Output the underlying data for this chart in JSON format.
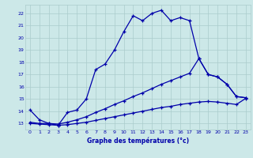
{
  "xlabel": "Graphe des températures (°c)",
  "background_color": "#cce8e8",
  "grid_color": "#aacccc",
  "line_color": "#0000aa",
  "xlim": [
    -0.5,
    23.5
  ],
  "ylim": [
    12.5,
    22.7
  ],
  "yticks": [
    13,
    14,
    15,
    16,
    17,
    18,
    19,
    20,
    21,
    22
  ],
  "xticks": [
    0,
    1,
    2,
    3,
    4,
    5,
    6,
    7,
    8,
    9,
    10,
    11,
    12,
    13,
    14,
    15,
    16,
    17,
    18,
    19,
    20,
    21,
    22,
    23
  ],
  "line1_x": [
    0,
    1,
    2,
    3,
    4,
    5,
    6,
    7,
    8,
    9,
    10,
    11,
    12,
    13,
    14,
    15,
    16,
    17,
    18,
    19,
    20,
    21,
    22,
    23
  ],
  "line1_y": [
    14.1,
    13.3,
    13.0,
    12.85,
    13.9,
    14.1,
    15.0,
    17.4,
    17.85,
    19.0,
    20.5,
    21.8,
    21.4,
    22.0,
    22.25,
    21.4,
    21.65,
    21.4,
    18.3,
    17.0,
    16.8,
    16.2,
    15.2,
    15.1
  ],
  "line2_x": [
    0,
    1,
    2,
    3,
    4,
    5,
    6,
    7,
    8,
    9,
    10,
    11,
    12,
    13,
    14,
    15,
    16,
    17,
    18,
    19,
    20,
    21,
    22,
    23
  ],
  "line2_y": [
    13.1,
    13.0,
    13.0,
    12.95,
    13.1,
    13.3,
    13.55,
    13.9,
    14.2,
    14.55,
    14.85,
    15.2,
    15.5,
    15.85,
    16.2,
    16.5,
    16.8,
    17.1,
    18.3,
    17.0,
    16.8,
    16.2,
    15.2,
    15.1
  ],
  "line3_x": [
    0,
    1,
    2,
    3,
    4,
    5,
    6,
    7,
    8,
    9,
    10,
    11,
    12,
    13,
    14,
    15,
    16,
    17,
    18,
    19,
    20,
    21,
    22,
    23
  ],
  "line3_y": [
    13.0,
    12.95,
    12.9,
    12.85,
    12.9,
    13.0,
    13.1,
    13.25,
    13.4,
    13.55,
    13.7,
    13.85,
    14.0,
    14.15,
    14.3,
    14.4,
    14.55,
    14.65,
    14.75,
    14.8,
    14.75,
    14.65,
    14.55,
    15.05
  ]
}
